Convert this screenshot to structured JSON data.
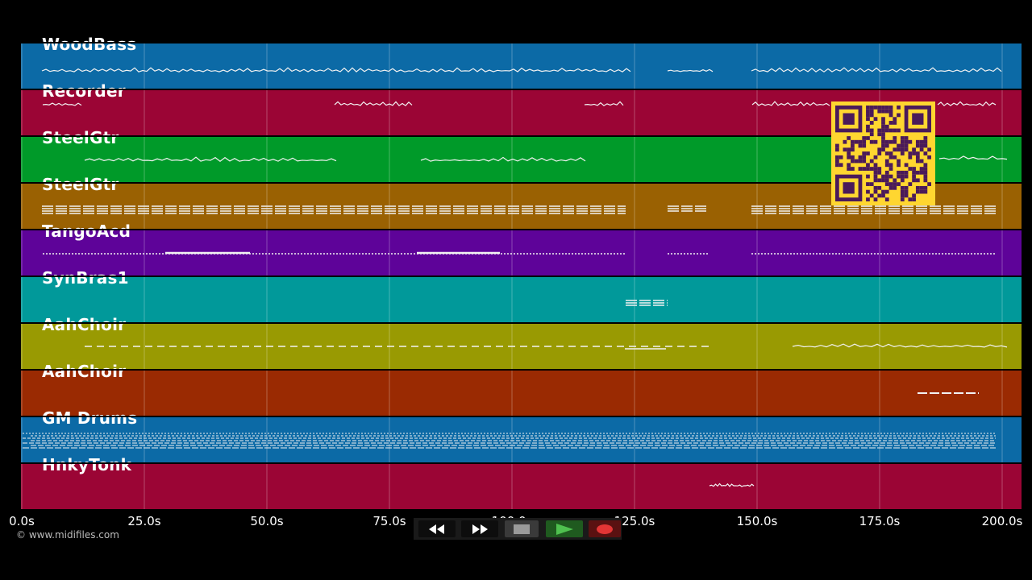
{
  "tracks": [
    {
      "name": "WoodBass",
      "color": "#0c6aa6"
    },
    {
      "name": "Recorder",
      "color": "#9b0535"
    },
    {
      "name": "SteelGtr",
      "color": "#009a29"
    },
    {
      "name": "SteelGtr",
      "color": "#9a6102"
    },
    {
      "name": "TangoAcd",
      "color": "#5e0399"
    },
    {
      "name": "SynBras1",
      "color": "#01999a"
    },
    {
      "name": "AahChoir",
      "color": "#999a02"
    },
    {
      "name": "AahChoir",
      "color": "#9a2a02"
    },
    {
      "name": "GM Drums",
      "color": "#0c6aa6"
    },
    {
      "name": "HnkyTonk",
      "color": "#9b0535"
    }
  ],
  "timeline": {
    "ticks": [
      "0.0s",
      "25.0s",
      "50.0s",
      "75.0s",
      "100.0s",
      "125.0s",
      "150.0s",
      "175.0s",
      "200.0s"
    ]
  },
  "credit": "© www.midifiles.com",
  "transport": {
    "buttons": [
      {
        "name": "rewind-button",
        "icon": "rewind-icon"
      },
      {
        "name": "fast-forward-button",
        "icon": "fast-forward-icon"
      },
      {
        "name": "stop-button",
        "icon": "stop-icon"
      },
      {
        "name": "play-button",
        "icon": "play-icon"
      },
      {
        "name": "record-button",
        "icon": "record-icon"
      }
    ]
  },
  "qr_code": {
    "icon": "qr-code-icon",
    "color": "#ffd630"
  }
}
